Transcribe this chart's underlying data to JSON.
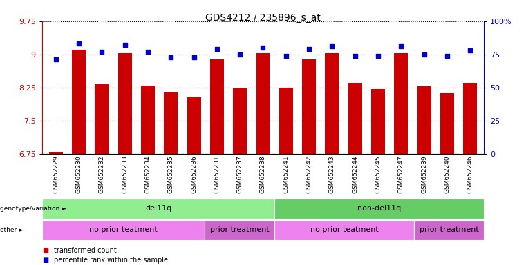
{
  "title": "GDS4212 / 235896_s_at",
  "samples": [
    "GSM652229",
    "GSM652230",
    "GSM652232",
    "GSM652233",
    "GSM652234",
    "GSM652235",
    "GSM652236",
    "GSM652231",
    "GSM652237",
    "GSM652238",
    "GSM652241",
    "GSM652242",
    "GSM652243",
    "GSM652244",
    "GSM652245",
    "GSM652247",
    "GSM652239",
    "GSM652240",
    "GSM652246"
  ],
  "transformed_counts": [
    6.8,
    9.1,
    8.32,
    9.02,
    8.3,
    8.14,
    8.04,
    8.88,
    8.23,
    9.02,
    8.24,
    8.88,
    9.02,
    8.35,
    8.22,
    9.02,
    8.28,
    8.12,
    8.35
  ],
  "percentile_ranks": [
    71,
    83,
    77,
    82,
    77,
    73,
    73,
    79,
    75,
    80,
    74,
    79,
    81,
    74,
    74,
    81,
    75,
    74,
    78
  ],
  "ylim_left": [
    6.75,
    9.75
  ],
  "ylim_right": [
    0,
    100
  ],
  "yticks_left": [
    6.75,
    7.5,
    8.25,
    9.0,
    9.75
  ],
  "yticks_right": [
    0,
    25,
    50,
    75,
    100
  ],
  "bar_color": "#CC0000",
  "dot_color": "#0000CC",
  "grid_color": "#000000",
  "background_color": "#ffffff",
  "genotype_groups": [
    {
      "label": "del11q",
      "start": 0,
      "end": 10,
      "color": "#90EE90"
    },
    {
      "label": "non-del11q",
      "start": 10,
      "end": 19,
      "color": "#66CC66"
    }
  ],
  "other_groups": [
    {
      "label": "no prior teatment",
      "start": 0,
      "end": 7,
      "color": "#EE82EE"
    },
    {
      "label": "prior treatment",
      "start": 7,
      "end": 10,
      "color": "#CC66CC"
    },
    {
      "label": "no prior teatment",
      "start": 10,
      "end": 16,
      "color": "#EE82EE"
    },
    {
      "label": "prior treatment",
      "start": 16,
      "end": 19,
      "color": "#CC66CC"
    }
  ],
  "bar_width": 0.6,
  "title_color": "#000000",
  "left_axis_color": "#CC0000",
  "right_axis_color": "#0000CC",
  "baseline": 6.75
}
